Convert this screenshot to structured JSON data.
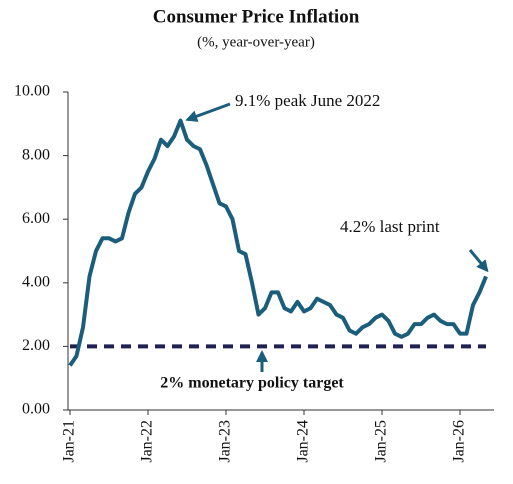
{
  "chart_data": {
    "type": "line",
    "title": "Consumer Price Inflation",
    "subtitle": "(%, year-over-year)",
    "categories": [
      "Jan-21",
      null,
      null,
      null,
      null,
      null,
      null,
      null,
      null,
      null,
      null,
      null,
      "Jan-22",
      null,
      null,
      null,
      null,
      null,
      null,
      null,
      null,
      null,
      null,
      null,
      "Jan-23",
      null,
      null,
      null,
      null,
      null,
      null,
      null,
      null,
      null,
      null,
      null,
      "Jan-24",
      null,
      null,
      null,
      null,
      null,
      null,
      null,
      null,
      null,
      null,
      null,
      "Jan-25",
      null,
      null,
      null,
      null,
      null,
      null,
      null,
      null,
      null,
      null,
      null,
      "Jan-26",
      null,
      null,
      null,
      null
    ],
    "values": [
      1.4,
      1.7,
      2.6,
      4.2,
      5.0,
      5.4,
      5.4,
      5.3,
      5.4,
      6.2,
      6.8,
      7.0,
      7.5,
      7.9,
      8.5,
      8.3,
      8.6,
      9.1,
      8.5,
      8.3,
      8.2,
      7.7,
      7.1,
      6.5,
      6.4,
      6.0,
      5.0,
      4.9,
      4.0,
      3.0,
      3.2,
      3.7,
      3.7,
      3.2,
      3.1,
      3.4,
      3.1,
      3.2,
      3.5,
      3.4,
      3.3,
      3.0,
      2.9,
      2.5,
      2.4,
      2.6,
      2.7,
      2.9,
      3.0,
      2.8,
      2.4,
      2.3,
      2.4,
      2.7,
      2.7,
      2.9,
      3.0,
      2.8,
      2.7,
      2.7,
      2.4,
      2.4,
      3.3,
      3.7,
      4.2
    ],
    "color": "#1b5e7b",
    "ylim": [
      0,
      10
    ],
    "yticks": [
      {
        "value": 0,
        "label": "0.00"
      },
      {
        "value": 2,
        "label": "2.00"
      },
      {
        "value": 4,
        "label": "4.00"
      },
      {
        "value": 6,
        "label": "6.00"
      },
      {
        "value": 8,
        "label": "8.00"
      },
      {
        "value": 10,
        "label": "10.00"
      }
    ],
    "grid": false,
    "target": {
      "value": 2,
      "label": "2% monetary policy target",
      "color": "#1e2152"
    },
    "annotations": [
      "9.1% peak June 2022",
      "4.2% last print"
    ]
  }
}
